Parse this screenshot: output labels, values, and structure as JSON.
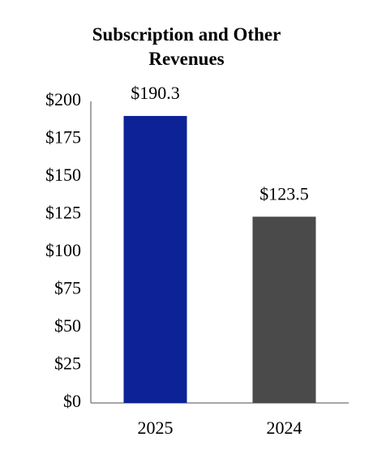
{
  "chart_data": {
    "type": "bar",
    "title": "Subscription and Other Revenues",
    "categories": [
      "2025",
      "2024"
    ],
    "values": [
      190.3,
      123.5
    ],
    "value_labels": [
      "$190.3",
      "$123.5"
    ],
    "colors": [
      "#0c2296",
      "#4a4a4a"
    ],
    "ylim": [
      0,
      200
    ],
    "yticks": [
      {
        "value": 0,
        "label": "$0"
      },
      {
        "value": 25,
        "label": "$25"
      },
      {
        "value": 50,
        "label": "$50"
      },
      {
        "value": 75,
        "label": "$75"
      },
      {
        "value": 100,
        "label": "$100"
      },
      {
        "value": 125,
        "label": "$125"
      },
      {
        "value": 150,
        "label": "$150"
      },
      {
        "value": 175,
        "label": "$175"
      },
      {
        "value": 200,
        "label": "$200"
      }
    ],
    "grid": false
  }
}
